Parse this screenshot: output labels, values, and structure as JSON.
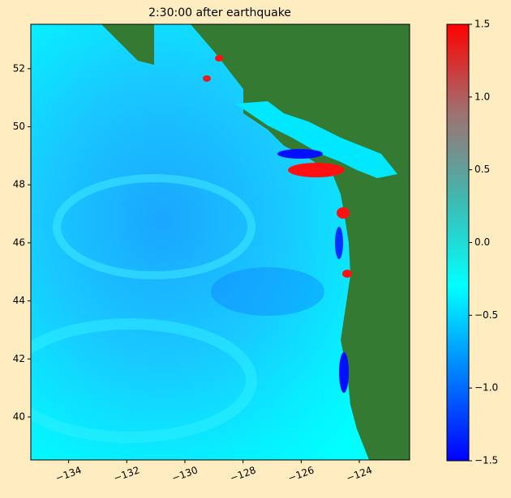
{
  "chart_data": {
    "type": "heatmap-map",
    "title": "2:30:00 after earthquake",
    "xlim": [
      -135.3,
      -122.27
    ],
    "ylim": [
      38.52,
      53.53
    ],
    "xticks": [
      {
        "value": -134,
        "label": "−134"
      },
      {
        "value": -132,
        "label": "−132"
      },
      {
        "value": -130,
        "label": "−130"
      },
      {
        "value": -128,
        "label": "−128"
      },
      {
        "value": -126,
        "label": "−126"
      },
      {
        "value": -124,
        "label": "−124"
      }
    ],
    "yticks": [
      40,
      42,
      44,
      46,
      48,
      50,
      52
    ],
    "colorbar": {
      "clim": [
        -1.5,
        1.5
      ],
      "ticks": [
        {
          "value": -1.5,
          "label": "−1.5"
        },
        {
          "value": -1.0,
          "label": "−1.0"
        },
        {
          "value": -0.5,
          "label": "−0.5"
        },
        {
          "value": 0.0,
          "label": "0.0"
        },
        {
          "value": 0.5,
          "label": "0.5"
        },
        {
          "value": 1.0,
          "label": "1.0"
        },
        {
          "value": 1.5,
          "label": "1.5"
        }
      ],
      "colormap": [
        "#0000ff",
        "#0080ff",
        "#00ffff",
        "#40b8b0",
        "#a07070",
        "#ff0000"
      ]
    },
    "land_color": "#357a32"
  }
}
